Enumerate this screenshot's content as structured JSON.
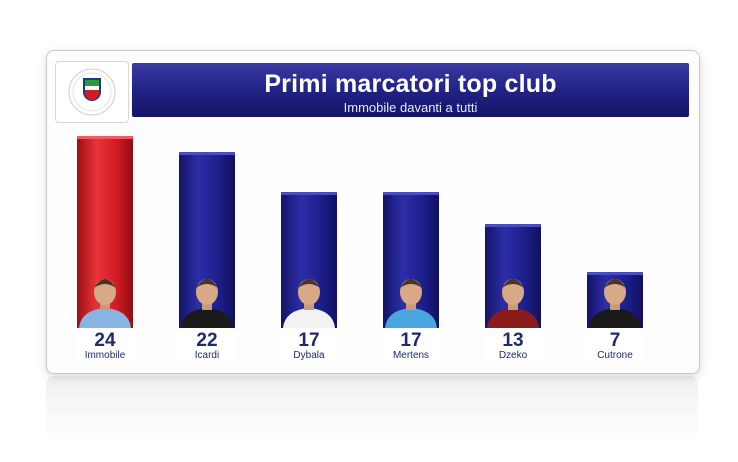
{
  "header": {
    "logo_text": "SERIE A TIM",
    "title": "Primi marcatori top club",
    "subtitle": "Immobile davanti a tutti"
  },
  "colors": {
    "leader_bar": "#d41b24",
    "bar": "#1d1f8c",
    "header": "#24248a",
    "label_text": "#1e2a6e"
  },
  "chart_data": {
    "type": "bar",
    "title": "Primi marcatori top club",
    "subtitle": "Immobile davanti a tutti",
    "categories": [
      "Immobile",
      "Icardi",
      "Dybala",
      "Mertens",
      "Dzeko",
      "Cutrone"
    ],
    "values": [
      24,
      22,
      17,
      17,
      13,
      7
    ],
    "ylim": [
      0,
      24
    ],
    "grid": false,
    "legend": "none"
  }
}
